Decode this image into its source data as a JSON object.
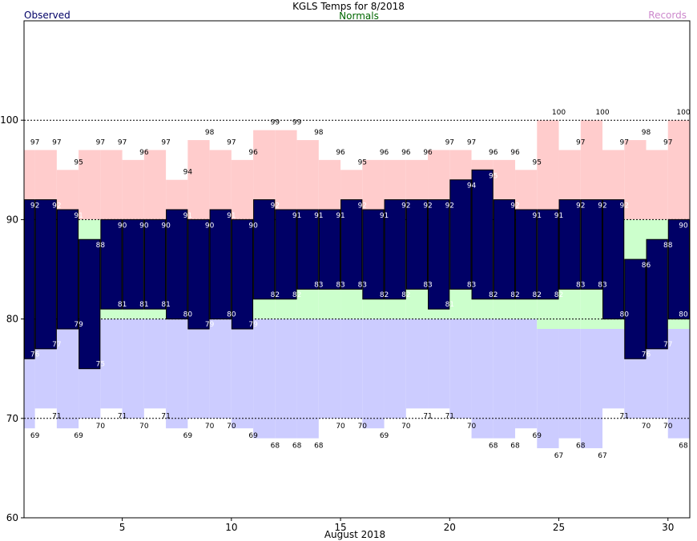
{
  "chart_data": {
    "type": "bar",
    "title": "KGLS Temps for 8/2018",
    "xlabel": "August 2018",
    "ylabel": "",
    "legend": {
      "observed": "Observed",
      "normals": "Normals",
      "records": "Records"
    },
    "ylim": [
      60,
      110
    ],
    "yticks": [
      60,
      70,
      80,
      90,
      100
    ],
    "xticks": [
      5,
      10,
      15,
      20,
      25,
      30
    ],
    "days": [
      1,
      2,
      3,
      4,
      5,
      6,
      7,
      8,
      9,
      10,
      11,
      12,
      13,
      14,
      15,
      16,
      17,
      18,
      19,
      20,
      21,
      22,
      23,
      24,
      25,
      26,
      27,
      28,
      29,
      30,
      31
    ],
    "series": [
      {
        "name": "Record High",
        "values": [
          97,
          97,
          95,
          97,
          97,
          96,
          97,
          94,
          98,
          97,
          96,
          99,
          99,
          98,
          96,
          95,
          96,
          96,
          96,
          97,
          97,
          96,
          96,
          95,
          100,
          97,
          100,
          97,
          98,
          97,
          100
        ]
      },
      {
        "name": "Observed High",
        "values": [
          92,
          92,
          91,
          88,
          90,
          90,
          90,
          91,
          90,
          91,
          90,
          92,
          91,
          91,
          91,
          92,
          91,
          92,
          92,
          92,
          94,
          95,
          92,
          91,
          91,
          92,
          92,
          92,
          86,
          88,
          90
        ]
      },
      {
        "name": "Observed Low",
        "values": [
          76,
          77,
          79,
          75,
          81,
          81,
          81,
          80,
          79,
          80,
          79,
          82,
          82,
          83,
          83,
          83,
          82,
          82,
          83,
          81,
          83,
          82,
          82,
          82,
          82,
          83,
          83,
          80,
          76,
          77,
          80
        ]
      },
      {
        "name": "Record Low",
        "values": [
          69,
          71,
          69,
          70,
          71,
          70,
          71,
          69,
          70,
          70,
          69,
          68,
          68,
          68,
          70,
          70,
          69,
          70,
          71,
          71,
          70,
          68,
          68,
          69,
          67,
          68,
          67,
          71,
          70,
          70,
          68
        ]
      }
    ],
    "normals_values": {
      "high": [
        90,
        90,
        90,
        90,
        90,
        90,
        90,
        90,
        90,
        90,
        90,
        90,
        90,
        90,
        90,
        90,
        90,
        90,
        90,
        90,
        90,
        90,
        90,
        90,
        90,
        90,
        90,
        90,
        90,
        90,
        90
      ],
      "low": [
        80,
        80,
        80,
        80,
        80,
        80,
        80,
        80,
        80,
        80,
        80,
        80,
        80,
        80,
        80,
        80,
        80,
        80,
        80,
        80,
        80,
        80,
        80,
        80,
        79,
        79,
        79,
        79,
        79,
        79,
        79
      ]
    },
    "colors": {
      "observed": "#000066",
      "normals_fill": "#ccffcc",
      "normals_text": "#006600",
      "record_high_fill": "#ffcccc",
      "record_low_fill": "#ccccff",
      "records_text": "#cc88cc",
      "observed_text": "#000066"
    }
  }
}
